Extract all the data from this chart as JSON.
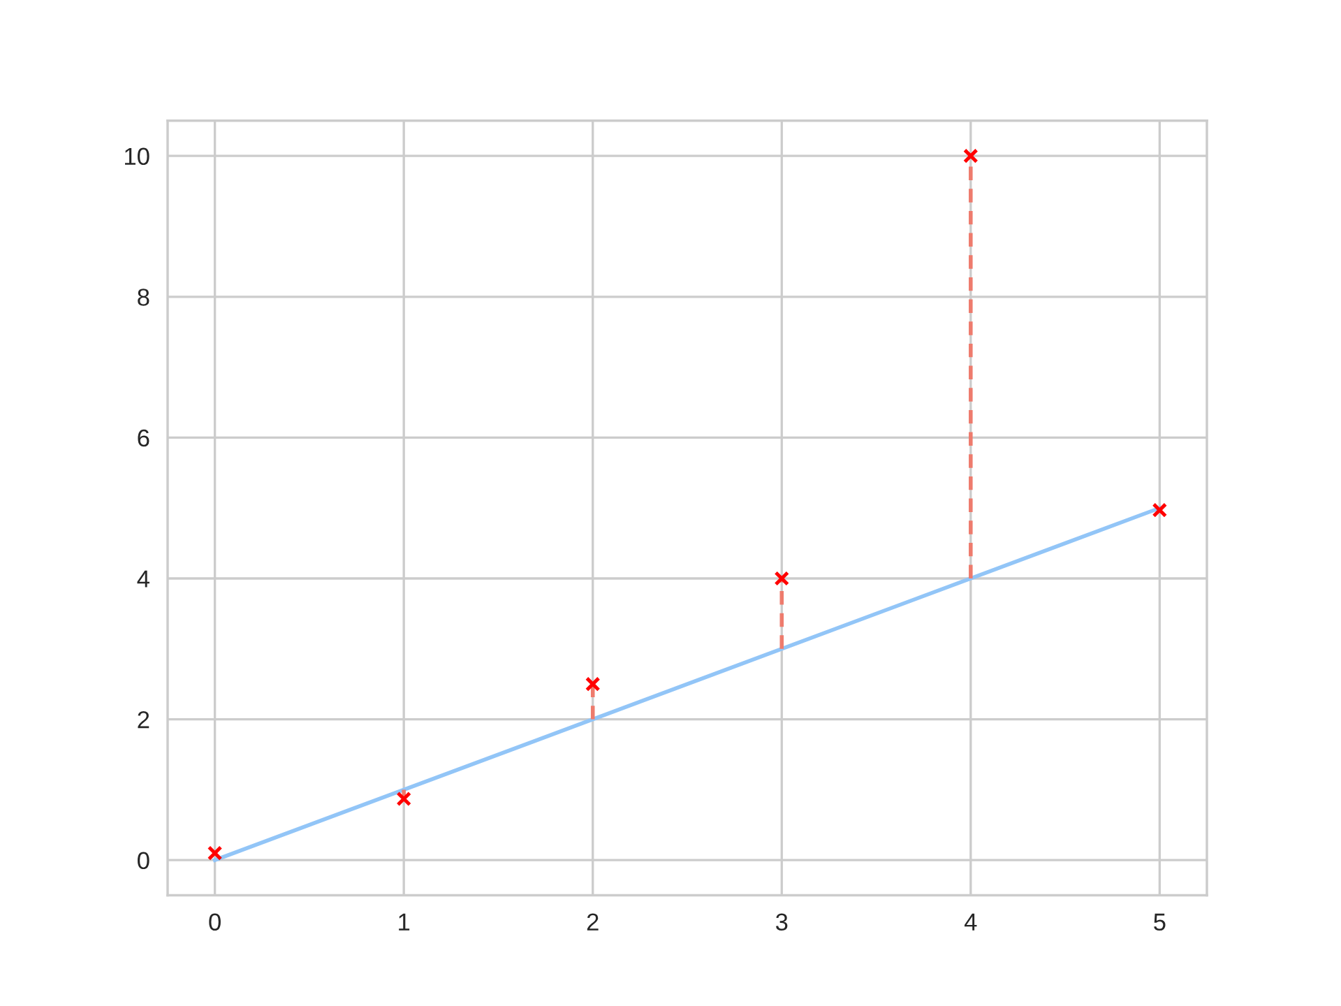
{
  "chart_data": {
    "type": "scatter",
    "xlim": [
      -0.25,
      5.25
    ],
    "ylim": [
      -0.5,
      10.5
    ],
    "xticks": [
      0,
      1,
      2,
      3,
      4,
      5
    ],
    "yticks": [
      0,
      2,
      4,
      6,
      8,
      10
    ],
    "grid": true,
    "series": [
      {
        "type": "line",
        "x": [
          0,
          5
        ],
        "values": [
          0,
          5
        ],
        "color": "#92c5f7",
        "line_style": "solid",
        "marker": "none"
      },
      {
        "type": "line",
        "x": [
          1,
          1
        ],
        "values": [
          1,
          0.87
        ],
        "color": "#ee7b6d",
        "line_style": "dashed",
        "marker": "none"
      },
      {
        "type": "line",
        "x": [
          2,
          2
        ],
        "values": [
          2,
          2.5
        ],
        "color": "#ee7b6d",
        "line_style": "dashed",
        "marker": "none"
      },
      {
        "type": "line",
        "x": [
          3,
          3
        ],
        "values": [
          3,
          4
        ],
        "color": "#ee7b6d",
        "line_style": "dashed",
        "marker": "none"
      },
      {
        "type": "line",
        "x": [
          4,
          4
        ],
        "values": [
          4,
          10
        ],
        "color": "#ee7b6d",
        "line_style": "dashed",
        "marker": "none"
      },
      {
        "x": [
          0,
          1,
          2,
          3,
          4,
          5
        ],
        "values": [
          0.1,
          0.87,
          2.5,
          4,
          10,
          4.97
        ],
        "color": "#ff0000",
        "marker": "cross"
      }
    ]
  }
}
